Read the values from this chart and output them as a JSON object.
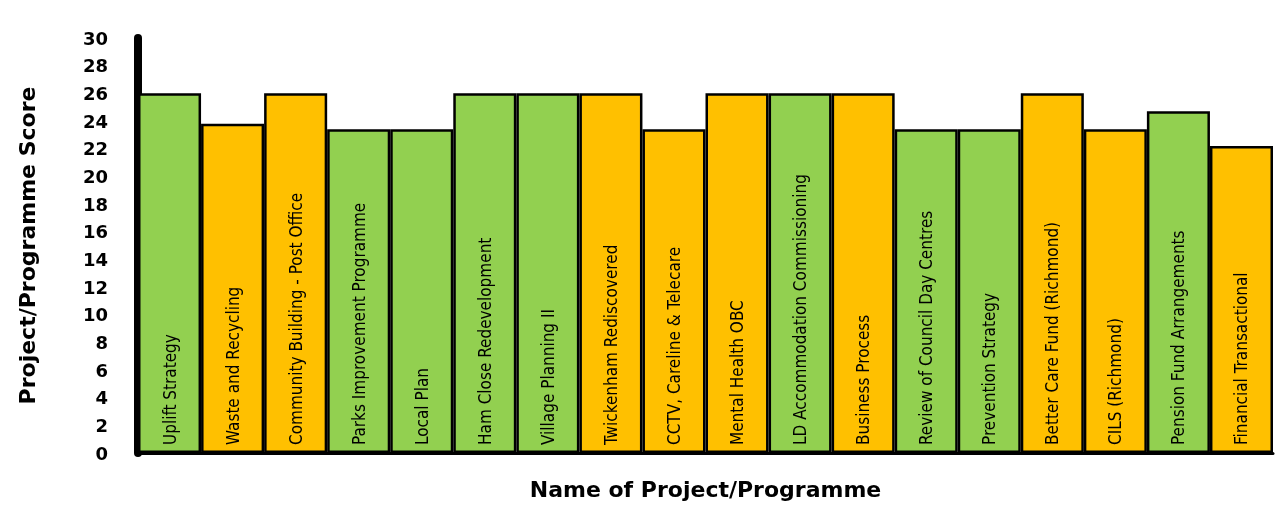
{
  "chart_data": {
    "type": "bar",
    "xlabel": "Name of Project/Programme",
    "ylabel": "Project/Programme Score",
    "categories": [
      "Uplift Strategy",
      "Waste and Recycling",
      "Community Building - Post Office",
      "Parks Improvement Programme",
      "Local Plan",
      "Ham Close Redevelopment",
      "Village Planning II",
      "Twickenham Rediscovered",
      "CCTV, Careline & Telecare",
      "Mental Health OBC",
      "LD Accommodation Commissioning",
      "Business Process",
      "Review of Council Day Centres",
      "Prevention Strategy",
      "Better Care Fund (Richmond)",
      "CILS (Richmond)",
      "Pension Fund Arrangements",
      "Financial Transactional"
    ],
    "values": [
      26,
      23.8,
      26,
      23.4,
      23.4,
      26,
      26,
      26,
      23.4,
      26,
      26,
      26,
      23.4,
      23.4,
      26,
      23.4,
      24.7,
      22.2
    ],
    "colors": [
      "#92d050",
      "#ffc000",
      "#ffc000",
      "#92d050",
      "#92d050",
      "#92d050",
      "#92d050",
      "#ffc000",
      "#ffc000",
      "#ffc000",
      "#92d050",
      "#ffc000",
      "#92d050",
      "#92d050",
      "#ffc000",
      "#ffc000",
      "#92d050",
      "#ffc000"
    ],
    "ylim": [
      0,
      30
    ],
    "yticks": [
      0,
      2,
      4,
      6,
      8,
      10,
      12,
      14,
      16,
      18,
      20,
      22,
      24,
      26,
      28,
      30
    ],
    "grid": false
  }
}
